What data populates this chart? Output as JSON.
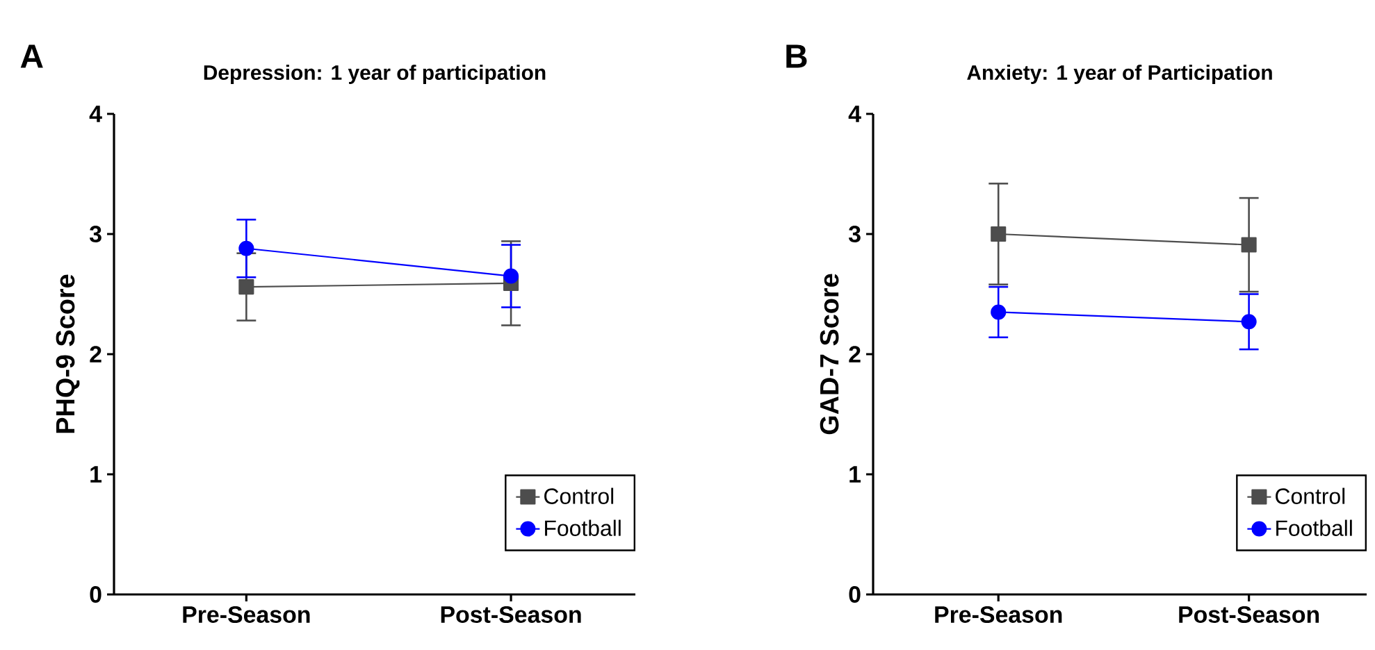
{
  "chart_data": [
    {
      "type": "line",
      "title": "Depression: 1 year of participation",
      "ylabel": "PHQ-9 Score",
      "annotations": [
        "A"
      ],
      "categories": [
        "Pre-Season",
        "Post-Season"
      ],
      "ylim": [
        0,
        4
      ],
      "yticks": [
        0,
        1,
        2,
        3,
        4
      ],
      "legend": "bottom right",
      "grid": false,
      "series": [
        {
          "name": "Control",
          "color": "#4d4d4d",
          "marker": "square",
          "values": [
            2.56,
            2.59
          ],
          "errors": [
            0.28,
            0.35
          ]
        },
        {
          "name": "Football",
          "color": "#0000ff",
          "marker": "circle",
          "values": [
            2.88,
            2.65
          ],
          "errors": [
            0.24,
            0.26
          ]
        }
      ]
    },
    {
      "type": "line",
      "title": "Anxiety: 1 year of Participation",
      "ylabel": "GAD-7 Score",
      "annotations": [
        "B"
      ],
      "categories": [
        "Pre-Season",
        "Post-Season"
      ],
      "ylim": [
        0,
        4
      ],
      "yticks": [
        0,
        1,
        2,
        3,
        4
      ],
      "legend": "bottom right",
      "grid": false,
      "series": [
        {
          "name": "Control",
          "color": "#4d4d4d",
          "marker": "square",
          "values": [
            3.0,
            2.91
          ],
          "errors": [
            0.42,
            0.39
          ]
        },
        {
          "name": "Football",
          "color": "#0000ff",
          "marker": "circle",
          "values": [
            2.35,
            2.27
          ],
          "errors": [
            0.21,
            0.23
          ]
        }
      ]
    }
  ]
}
